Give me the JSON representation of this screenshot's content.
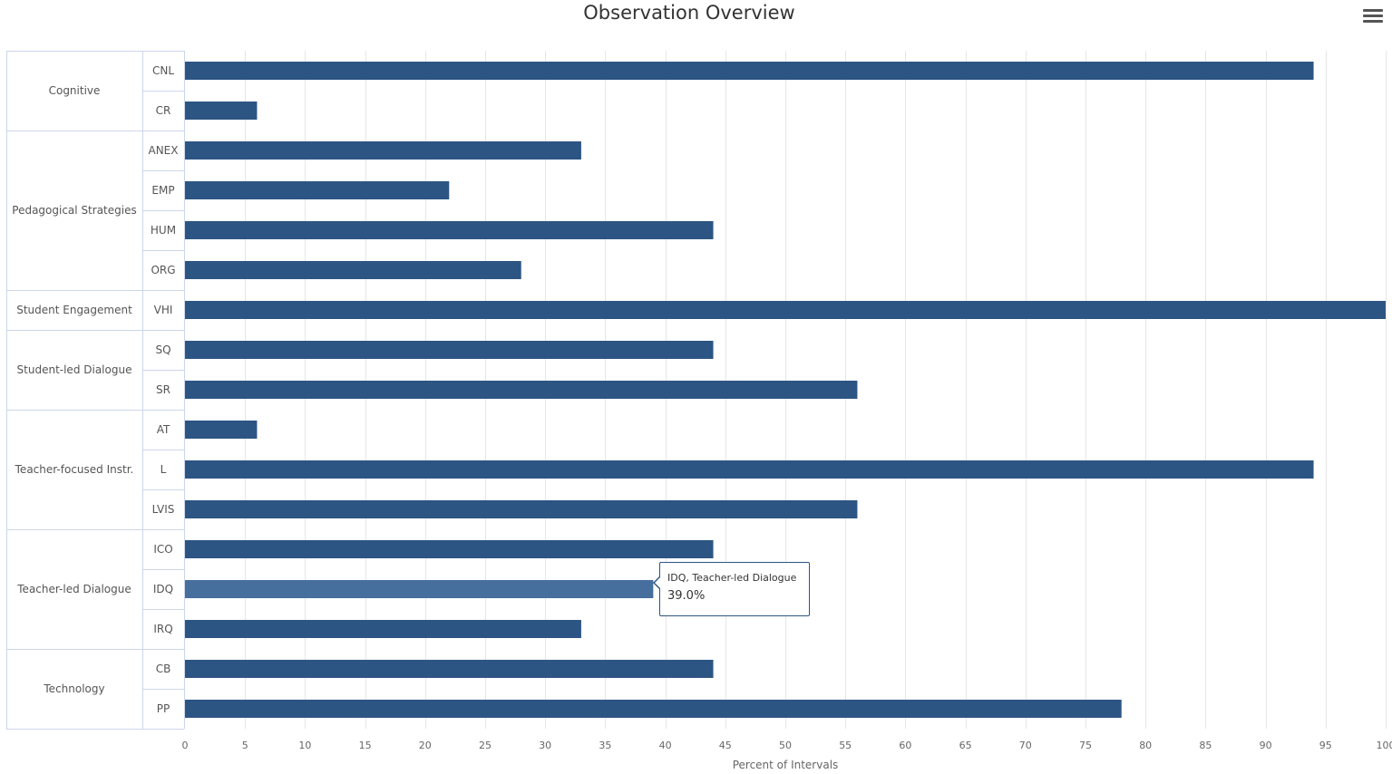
{
  "chart_data": {
    "type": "bar",
    "orientation": "horizontal",
    "title": "Observation Overview",
    "xlabel": "Percent of Intervals",
    "ylabel": "",
    "xlim": [
      0,
      100
    ],
    "ticks": [
      0,
      5,
      10,
      15,
      20,
      25,
      30,
      35,
      40,
      45,
      50,
      55,
      60,
      65,
      70,
      75,
      80,
      85,
      90,
      95,
      100
    ],
    "grid": true,
    "groups": [
      {
        "name": "Cognitive",
        "categories": [
          "CNL",
          "CR"
        ]
      },
      {
        "name": "Pedagogical Strategies",
        "categories": [
          "ANEX",
          "EMP",
          "HUM",
          "ORG"
        ]
      },
      {
        "name": "Student Engagement",
        "categories": [
          "VHI"
        ]
      },
      {
        "name": "Student-led Dialogue",
        "categories": [
          "SQ",
          "SR"
        ]
      },
      {
        "name": "Teacher-focused Instr.",
        "categories": [
          "AT",
          "L",
          "LVIS"
        ]
      },
      {
        "name": "Teacher-led Dialogue",
        "categories": [
          "ICO",
          "IDQ",
          "IRQ"
        ]
      },
      {
        "name": "Technology",
        "categories": [
          "CB",
          "PP"
        ]
      }
    ],
    "categories": [
      "CNL",
      "CR",
      "ANEX",
      "EMP",
      "HUM",
      "ORG",
      "VHI",
      "SQ",
      "SR",
      "AT",
      "L",
      "LVIS",
      "ICO",
      "IDQ",
      "IRQ",
      "CB",
      "PP"
    ],
    "values": [
      94,
      6,
      33,
      22,
      44,
      28,
      100,
      44,
      56,
      6,
      94,
      56,
      44,
      39,
      33,
      44,
      78
    ],
    "highlighted": "IDQ",
    "tooltip": {
      "header": "IDQ, Teacher-led Dialogue",
      "value": "39.0%"
    },
    "colors": {
      "bar": "#2c5583",
      "bar_hover": "#466f9d",
      "grid": "#e6e6e6",
      "border": "#ccd6eb",
      "text": "#666666"
    }
  }
}
